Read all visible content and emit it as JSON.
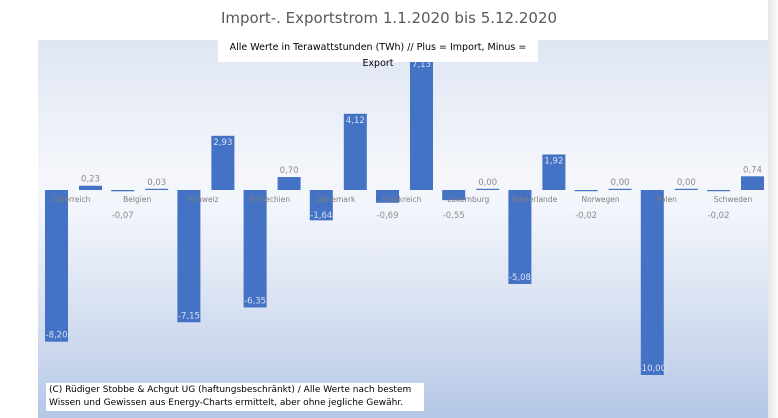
{
  "chart_data": {
    "type": "bar",
    "title": "Import-. Exportstrom 1.1.2020 bis 5.12.2020",
    "subtitle": "Alle Werte in Terawattstunden (TWh) // Plus = Import, Minus = Export",
    "categories": [
      "Österreich",
      "Belgien",
      "Schweiz",
      "Tschechien",
      "Dänemark",
      "Frankreich",
      "Luxemburg",
      "Niederlande",
      "Norwegen",
      "Polen",
      "Schweden"
    ],
    "series": [
      {
        "name": "Export",
        "values": [
          -8.2,
          -0.07,
          -7.15,
          -6.35,
          -1.64,
          -0.69,
          -0.55,
          -5.08,
          -0.02,
          -10.0,
          -0.02
        ],
        "labels": [
          "-8,20",
          "-0,07",
          "-7,15",
          "-6,35",
          "-1,64",
          "-0,69",
          "-0,55",
          "-5,08",
          "-0,02",
          "-10,00",
          "-0,02"
        ]
      },
      {
        "name": "Import",
        "values": [
          0.23,
          0.03,
          2.93,
          0.7,
          4.12,
          7.13,
          0.0,
          1.92,
          0.0,
          0.0,
          0.74
        ],
        "labels": [
          "0,23",
          "0,03",
          "2,93",
          "0,70",
          "4,12",
          "7,13",
          "0,00",
          "1,92",
          "0,00",
          "0,00",
          "0,74"
        ]
      }
    ],
    "xlabel": "",
    "ylabel": "TWh",
    "ylim": [
      -10.5,
      8
    ],
    "bar_color": "#4472c4",
    "grid": false
  },
  "credit": "(C) Rüdiger Stobbe & Achgut UG (haftungsbeschränkt) / Alle Werte nach bestem Wissen und Gewissen aus Energy-Charts ermittelt, aber ohne jegliche Gewähr."
}
